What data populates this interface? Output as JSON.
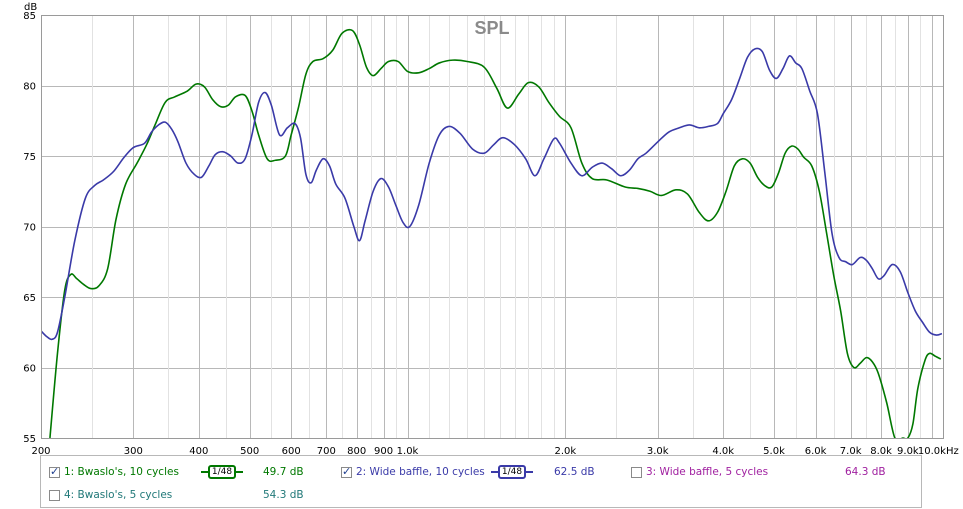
{
  "chart_data": {
    "type": "line",
    "title": "SPL",
    "ylabel": "dB",
    "xunit": "Hz",
    "xscale": "log",
    "xlim": [
      200,
      10500
    ],
    "ylim": [
      55,
      85
    ],
    "grid": true,
    "ytick_labels": [
      "55",
      "60",
      "65",
      "70",
      "75",
      "80",
      "85"
    ],
    "xtick_labels": [
      {
        "v": 200,
        "t": "200"
      },
      {
        "v": 300,
        "t": "300"
      },
      {
        "v": 400,
        "t": "400"
      },
      {
        "v": 500,
        "t": "500"
      },
      {
        "v": 600,
        "t": "600"
      },
      {
        "v": 700,
        "t": "700"
      },
      {
        "v": 800,
        "t": "800"
      },
      {
        "v": 900,
        "t": "900"
      },
      {
        "v": 1000,
        "t": "1.0k"
      },
      {
        "v": 2000,
        "t": "2.0k"
      },
      {
        "v": 3000,
        "t": "3.0k"
      },
      {
        "v": 4000,
        "t": "4.0k"
      },
      {
        "v": 5000,
        "t": "5.0k"
      },
      {
        "v": 6000,
        "t": "6.0k"
      },
      {
        "v": 7000,
        "t": "7.0k"
      },
      {
        "v": 8000,
        "t": "8.0k"
      },
      {
        "v": 9000,
        "t": "9.0k"
      },
      {
        "v": 10000,
        "t": "10.0k"
      }
    ],
    "series": [
      {
        "name": "1: Bwaslo's, 10 cycles",
        "color": "#007800",
        "points": [
          [
            208,
            55.0
          ],
          [
            215,
            61.0
          ],
          [
            222,
            65.5
          ],
          [
            228,
            66.6
          ],
          [
            234,
            66.3
          ],
          [
            241,
            65.9
          ],
          [
            249,
            65.6
          ],
          [
            258,
            65.8
          ],
          [
            268,
            67.0
          ],
          [
            278,
            70.5
          ],
          [
            290,
            73.0
          ],
          [
            305,
            74.5
          ],
          [
            318,
            75.8
          ],
          [
            330,
            77.2
          ],
          [
            345,
            78.8
          ],
          [
            360,
            79.2
          ],
          [
            380,
            79.6
          ],
          [
            395,
            80.1
          ],
          [
            410,
            79.9
          ],
          [
            425,
            79.0
          ],
          [
            440,
            78.5
          ],
          [
            455,
            78.6
          ],
          [
            470,
            79.2
          ],
          [
            490,
            79.3
          ],
          [
            505,
            78.2
          ],
          [
            520,
            76.5
          ],
          [
            540,
            74.8
          ],
          [
            560,
            74.7
          ],
          [
            585,
            75.0
          ],
          [
            600,
            76.5
          ],
          [
            620,
            78.5
          ],
          [
            640,
            80.8
          ],
          [
            660,
            81.7
          ],
          [
            690,
            81.9
          ],
          [
            720,
            82.5
          ],
          [
            750,
            83.7
          ],
          [
            785,
            83.9
          ],
          [
            810,
            82.9
          ],
          [
            835,
            81.3
          ],
          [
            860,
            80.7
          ],
          [
            890,
            81.2
          ],
          [
            920,
            81.7
          ],
          [
            960,
            81.7
          ],
          [
            1000,
            81.0
          ],
          [
            1050,
            80.9
          ],
          [
            1100,
            81.2
          ],
          [
            1150,
            81.6
          ],
          [
            1220,
            81.8
          ],
          [
            1300,
            81.7
          ],
          [
            1400,
            81.3
          ],
          [
            1480,
            79.8
          ],
          [
            1550,
            78.4
          ],
          [
            1630,
            79.4
          ],
          [
            1700,
            80.2
          ],
          [
            1780,
            79.9
          ],
          [
            1860,
            78.8
          ],
          [
            1950,
            77.8
          ],
          [
            2050,
            77.0
          ],
          [
            2150,
            74.5
          ],
          [
            2250,
            73.4
          ],
          [
            2400,
            73.3
          ],
          [
            2600,
            72.8
          ],
          [
            2750,
            72.7
          ],
          [
            2900,
            72.5
          ],
          [
            3050,
            72.2
          ],
          [
            3250,
            72.6
          ],
          [
            3420,
            72.3
          ],
          [
            3600,
            71.0
          ],
          [
            3750,
            70.4
          ],
          [
            3900,
            71.0
          ],
          [
            4050,
            72.5
          ],
          [
            4200,
            74.3
          ],
          [
            4350,
            74.8
          ],
          [
            4500,
            74.5
          ],
          [
            4650,
            73.5
          ],
          [
            4800,
            72.9
          ],
          [
            4950,
            72.8
          ],
          [
            5100,
            73.8
          ],
          [
            5250,
            75.2
          ],
          [
            5400,
            75.7
          ],
          [
            5550,
            75.5
          ],
          [
            5700,
            74.9
          ],
          [
            5900,
            74.3
          ],
          [
            6100,
            72.5
          ],
          [
            6300,
            69.5
          ],
          [
            6500,
            66.5
          ],
          [
            6700,
            64.0
          ],
          [
            6900,
            61.0
          ],
          [
            7100,
            60.0
          ],
          [
            7300,
            60.3
          ],
          [
            7500,
            60.7
          ],
          [
            7700,
            60.4
          ],
          [
            7900,
            59.6
          ],
          [
            8200,
            57.5
          ],
          [
            8500,
            55.0
          ],
          [
            8800,
            55.0
          ],
          [
            9000,
            55.0
          ],
          [
            9200,
            56.0
          ],
          [
            9400,
            58.5
          ],
          [
            9700,
            60.5
          ],
          [
            9900,
            61.0
          ],
          [
            10150,
            60.8
          ],
          [
            10400,
            60.6
          ]
        ]
      },
      {
        "name": "2: Wide baffle, 10 cycles",
        "color": "#3a3aa8",
        "points": [
          [
            200,
            62.6
          ],
          [
            205,
            62.2
          ],
          [
            210,
            62.0
          ],
          [
            215,
            62.5
          ],
          [
            222,
            65.0
          ],
          [
            232,
            69.0
          ],
          [
            243,
            72.0
          ],
          [
            253,
            72.9
          ],
          [
            263,
            73.3
          ],
          [
            275,
            73.9
          ],
          [
            288,
            74.9
          ],
          [
            300,
            75.6
          ],
          [
            315,
            75.9
          ],
          [
            325,
            76.7
          ],
          [
            335,
            77.2
          ],
          [
            345,
            77.4
          ],
          [
            355,
            76.9
          ],
          [
            365,
            76.0
          ],
          [
            378,
            74.5
          ],
          [
            392,
            73.7
          ],
          [
            405,
            73.5
          ],
          [
            418,
            74.3
          ],
          [
            430,
            75.1
          ],
          [
            445,
            75.3
          ],
          [
            460,
            75.0
          ],
          [
            475,
            74.5
          ],
          [
            490,
            74.8
          ],
          [
            505,
            76.5
          ],
          [
            520,
            78.8
          ],
          [
            535,
            79.5
          ],
          [
            550,
            78.6
          ],
          [
            570,
            76.5
          ],
          [
            590,
            77.0
          ],
          [
            610,
            77.3
          ],
          [
            625,
            76.3
          ],
          [
            640,
            73.7
          ],
          [
            655,
            73.1
          ],
          [
            670,
            74.0
          ],
          [
            690,
            74.8
          ],
          [
            710,
            74.3
          ],
          [
            730,
            73.0
          ],
          [
            760,
            72.0
          ],
          [
            790,
            70.0
          ],
          [
            810,
            69.0
          ],
          [
            830,
            70.4
          ],
          [
            860,
            72.5
          ],
          [
            890,
            73.4
          ],
          [
            920,
            72.8
          ],
          [
            950,
            71.5
          ],
          [
            980,
            70.3
          ],
          [
            1010,
            70.0
          ],
          [
            1050,
            71.5
          ],
          [
            1100,
            74.5
          ],
          [
            1150,
            76.5
          ],
          [
            1200,
            77.1
          ],
          [
            1260,
            76.6
          ],
          [
            1330,
            75.5
          ],
          [
            1400,
            75.2
          ],
          [
            1460,
            75.8
          ],
          [
            1520,
            76.3
          ],
          [
            1600,
            75.8
          ],
          [
            1680,
            74.8
          ],
          [
            1750,
            73.6
          ],
          [
            1820,
            74.8
          ],
          [
            1900,
            76.2
          ],
          [
            1950,
            75.9
          ],
          [
            2050,
            74.5
          ],
          [
            2150,
            73.6
          ],
          [
            2250,
            74.2
          ],
          [
            2350,
            74.5
          ],
          [
            2450,
            74.1
          ],
          [
            2550,
            73.6
          ],
          [
            2650,
            74.0
          ],
          [
            2750,
            74.8
          ],
          [
            2850,
            75.2
          ],
          [
            3000,
            76.0
          ],
          [
            3150,
            76.7
          ],
          [
            3300,
            77.0
          ],
          [
            3450,
            77.2
          ],
          [
            3600,
            77.0
          ],
          [
            3750,
            77.1
          ],
          [
            3900,
            77.3
          ],
          [
            4000,
            78.0
          ],
          [
            4150,
            79.0
          ],
          [
            4300,
            80.5
          ],
          [
            4450,
            82.0
          ],
          [
            4600,
            82.6
          ],
          [
            4750,
            82.4
          ],
          [
            4900,
            81.1
          ],
          [
            5050,
            80.5
          ],
          [
            5200,
            81.2
          ],
          [
            5350,
            82.1
          ],
          [
            5500,
            81.6
          ],
          [
            5650,
            81.2
          ],
          [
            5850,
            79.6
          ],
          [
            6050,
            78.0
          ],
          [
            6250,
            73.8
          ],
          [
            6450,
            69.5
          ],
          [
            6650,
            67.8
          ],
          [
            6850,
            67.5
          ],
          [
            7050,
            67.3
          ],
          [
            7300,
            67.8
          ],
          [
            7500,
            67.6
          ],
          [
            7700,
            67.0
          ],
          [
            7900,
            66.3
          ],
          [
            8100,
            66.5
          ],
          [
            8400,
            67.3
          ],
          [
            8700,
            66.8
          ],
          [
            9000,
            65.3
          ],
          [
            9300,
            64.0
          ],
          [
            9600,
            63.2
          ],
          [
            9900,
            62.5
          ],
          [
            10200,
            62.3
          ],
          [
            10450,
            62.4
          ]
        ]
      }
    ]
  },
  "legend": {
    "items": [
      {
        "label": "1: Bwaslo's, 10 cycles",
        "checked": true,
        "color": "#007800",
        "smoothing": "1/48",
        "level": "49.7 dB"
      },
      {
        "label": "2: Wide baffle, 10 cycles",
        "checked": true,
        "color": "#3a3aa8",
        "smoothing": "1/48",
        "level": "62.5 dB"
      },
      {
        "label": "3: Wide baffle, 5 cycles",
        "checked": false,
        "color": "#a020a0",
        "level": "64.3 dB"
      },
      {
        "label": "4: Bwaslo's, 5 cycles",
        "checked": false,
        "color": "#207878",
        "level": "54.3 dB"
      }
    ]
  }
}
